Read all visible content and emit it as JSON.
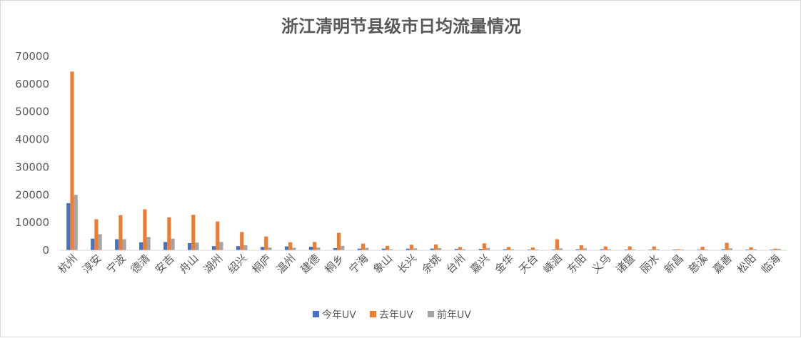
{
  "chart_data": {
    "type": "bar",
    "title": "浙江清明节县级市日均流量情况",
    "xlabel": "",
    "ylabel": "",
    "ylim": [
      0,
      70000
    ],
    "yticks": [
      0,
      10000,
      20000,
      30000,
      40000,
      50000,
      60000,
      70000
    ],
    "grid": false,
    "legend_position": "bottom",
    "categories": [
      "杭州",
      "淳安",
      "宁波",
      "德清",
      "安吉",
      "舟山",
      "湖州",
      "绍兴",
      "桐庐",
      "温州",
      "建德",
      "桐乡",
      "宁海",
      "象山",
      "长兴",
      "余姚",
      "台州",
      "嘉兴",
      "金华",
      "天台",
      "嵊泗",
      "东阳",
      "义乌",
      "诸暨",
      "丽水",
      "新昌",
      "慈溪",
      "嘉善",
      "松阳",
      "临海"
    ],
    "series": [
      {
        "name": "今年UV",
        "color": "#4472c4",
        "values": [
          17000,
          4200,
          4000,
          2900,
          3000,
          2600,
          1500,
          1500,
          1200,
          1400,
          1300,
          800,
          600,
          600,
          600,
          600,
          500,
          500,
          400,
          300,
          300,
          400,
          400,
          300,
          300,
          300,
          300,
          400,
          300,
          300
        ]
      },
      {
        "name": "去年UV",
        "color": "#ed7d31",
        "values": [
          64500,
          11200,
          12700,
          14800,
          11900,
          12800,
          10400,
          6600,
          5000,
          2900,
          3000,
          6300,
          2400,
          1600,
          2000,
          2100,
          1200,
          2500,
          1200,
          1000,
          4000,
          1800,
          1400,
          1400,
          1400,
          400,
          1300,
          2700,
          1100,
          600
        ]
      },
      {
        "name": "前年UV",
        "color": "#a5a5a5",
        "values": [
          20000,
          5800,
          4000,
          4800,
          4200,
          2800,
          3000,
          1800,
          1000,
          900,
          1000,
          1600,
          900,
          400,
          700,
          800,
          400,
          800,
          400,
          300,
          700,
          700,
          400,
          300,
          400,
          300,
          300,
          700,
          400,
          500
        ]
      }
    ]
  }
}
